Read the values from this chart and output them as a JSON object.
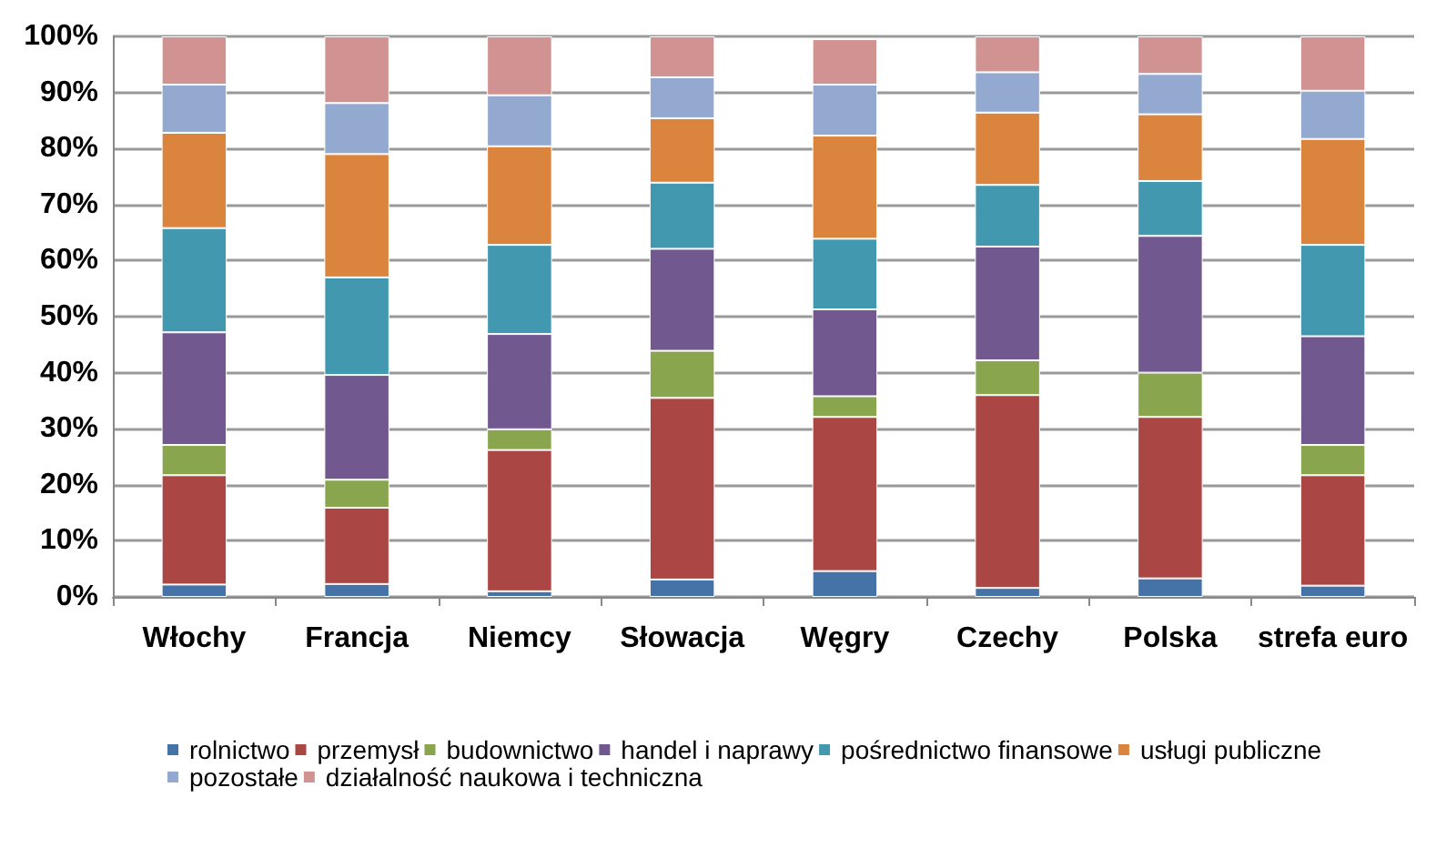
{
  "chart_data": {
    "type": "bar",
    "stacked": true,
    "categories": [
      "Włochy",
      "Francja",
      "Niemcy",
      "Słowacja",
      "Węgry",
      "Czechy",
      "Polska",
      "strefa euro"
    ],
    "series": [
      {
        "name": "rolnictwo",
        "color": "#4572a7",
        "values": [
          2.2,
          2.3,
          1.0,
          3.1,
          4.6,
          1.6,
          3.3,
          2.0
        ]
      },
      {
        "name": "przemysł",
        "color": "#aa4643",
        "values": [
          19.5,
          13.6,
          25.2,
          32.4,
          27.5,
          34.4,
          28.8,
          19.7
        ]
      },
      {
        "name": "budownictwo",
        "color": "#89a54e",
        "values": [
          5.4,
          5.0,
          3.7,
          8.4,
          3.7,
          6.2,
          7.9,
          5.4
        ]
      },
      {
        "name": "handel i naprawy",
        "color": "#71588f",
        "values": [
          20.1,
          18.7,
          17.0,
          18.2,
          15.5,
          20.3,
          24.4,
          19.4
        ]
      },
      {
        "name": "pośrednictwo finansowe",
        "color": "#4198af",
        "values": [
          18.6,
          17.4,
          15.9,
          11.8,
          12.6,
          11.0,
          9.8,
          16.3
        ]
      },
      {
        "name": "usługi publiczne",
        "color": "#db843d",
        "values": [
          17.0,
          22.0,
          17.6,
          11.5,
          18.4,
          12.9,
          11.9,
          18.9
        ]
      },
      {
        "name": "pozostałe",
        "color": "#93a9cf",
        "values": [
          8.6,
          9.1,
          9.1,
          7.3,
          9.1,
          7.2,
          7.2,
          8.6
        ]
      },
      {
        "name": "działalność naukowa i techniczna",
        "color": "#d19392",
        "values": [
          8.6,
          11.9,
          10.5,
          7.3,
          8.1,
          6.4,
          6.7,
          9.7
        ]
      }
    ],
    "ylim": [
      0,
      100
    ],
    "yticks": [
      {
        "value": 0,
        "label": "0%"
      },
      {
        "value": 10,
        "label": "10%"
      },
      {
        "value": 20,
        "label": "20%"
      },
      {
        "value": 30,
        "label": "30%"
      },
      {
        "value": 40,
        "label": "40%"
      },
      {
        "value": 50,
        "label": "50%"
      },
      {
        "value": 60,
        "label": "60%"
      },
      {
        "value": 70,
        "label": "70%"
      },
      {
        "value": 80,
        "label": "80%"
      },
      {
        "value": 90,
        "label": "90%"
      },
      {
        "value": 100,
        "label": "100%"
      }
    ],
    "grid": "y",
    "legend": "bottom"
  }
}
